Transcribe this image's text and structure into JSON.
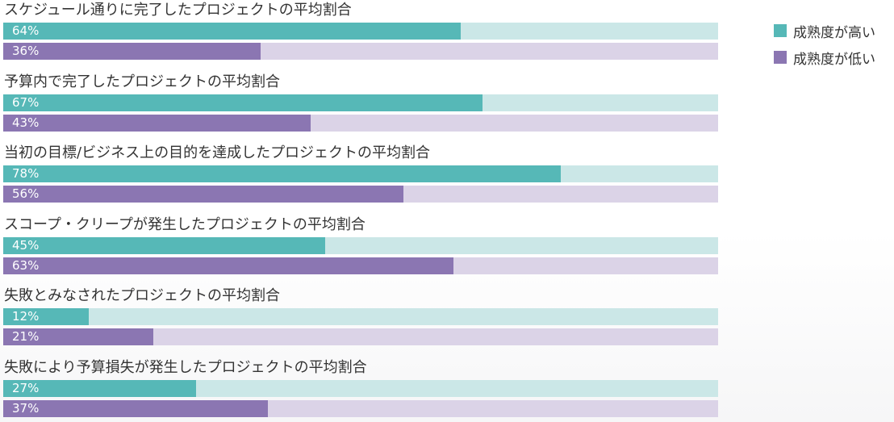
{
  "chart_data": {
    "type": "bar",
    "orientation": "horizontal",
    "categories": [
      "スケジュール通りに完了したプロジェクトの平均割合",
      "予算内で完了したプロジェクトの平均割合",
      "当初の目標/ビジネス上の目的を達成したプロジェクトの平均割合",
      "スコープ・クリープが発生したプロジェクトの平均割合",
      "失敗とみなされたプロジェクトの平均割合",
      "失敗により予算損失が発生したプロジェクトの平均割合"
    ],
    "series": [
      {
        "name": "成熟度が高い",
        "values": [
          64,
          67,
          78,
          45,
          12,
          27
        ],
        "labels": [
          "64%",
          "67%",
          "78%",
          "45%",
          "12%",
          "27%"
        ],
        "color": "#56b8b7",
        "track_color": "#cbe7e7"
      },
      {
        "name": "成熟度が低い",
        "values": [
          36,
          43,
          56,
          63,
          21,
          37
        ],
        "labels": [
          "36%",
          "43%",
          "56%",
          "63%",
          "21%",
          "37%"
        ],
        "color": "#8b76b2",
        "track_color": "#dbd3e7"
      }
    ],
    "xlim": [
      0,
      100
    ],
    "legend_position": "top-right",
    "grid": false
  }
}
